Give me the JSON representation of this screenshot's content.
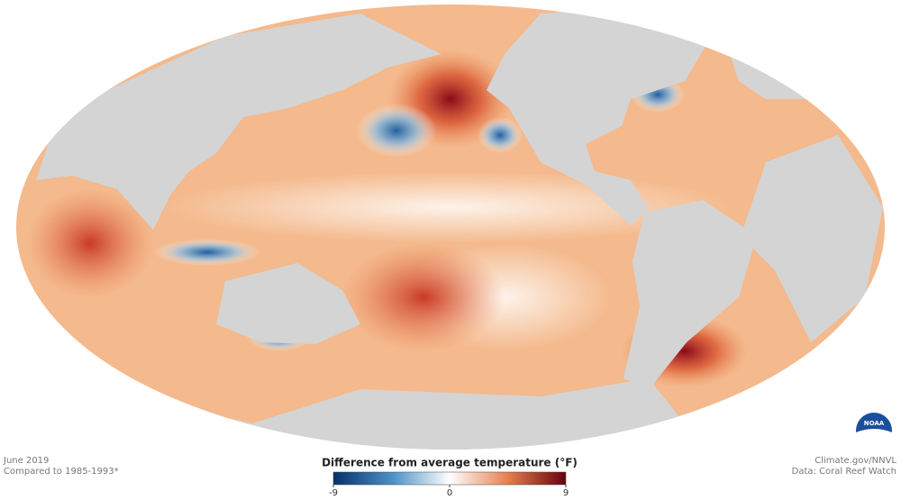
{
  "map": {
    "caption": {
      "date": "June 2019",
      "baseline": "Compared to 1985-1993*"
    },
    "credit": {
      "source": "Climate.gov/NNVL",
      "data": "Data: Coral Reef Watch"
    },
    "logo": "NOAA",
    "legend": {
      "title": "Difference from average temperature (°F)",
      "range": [
        -9,
        9
      ],
      "ticks": [
        -9,
        0,
        9
      ]
    }
  }
}
